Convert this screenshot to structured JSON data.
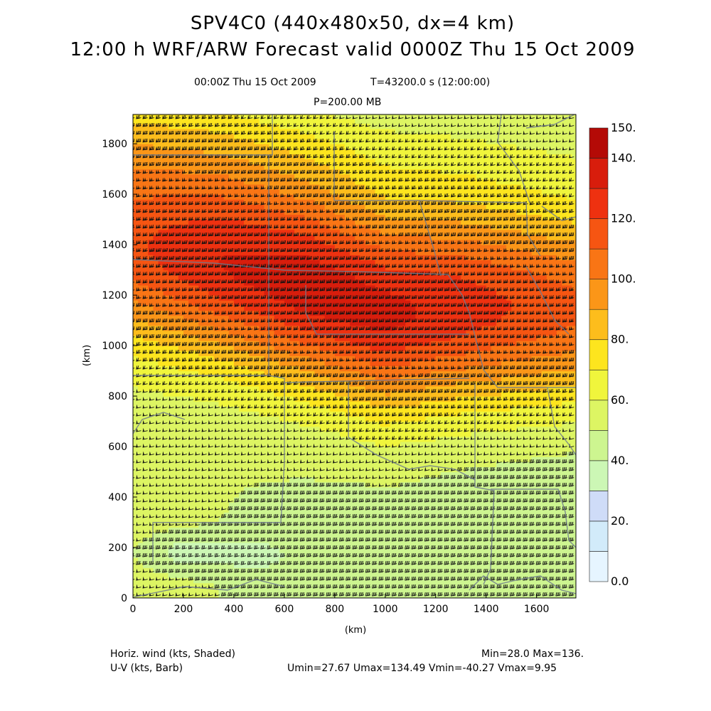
{
  "titles": {
    "line1": "SPV4C0 (440x480x50, dx=4 km)",
    "line2": "12:00 h WRF/ARW Forecast valid 0000Z Thu 15 Oct 2009",
    "time": "00:00Z Thu 15 Oct 2009",
    "elapsed": "T=43200.0 s (12:00:00)",
    "level": "P=200.00 MB"
  },
  "footer": {
    "field1": "Horiz. wind (kts, Shaded)",
    "field2": "U-V (kts, Barb)",
    "minmax": "Min=28.0 Max=136.",
    "uvstats": "Umin=27.67 Umax=134.49 Vmin=-40.27 Vmax=9.95"
  },
  "chart_data": {
    "type": "heatmap",
    "xlabel": "(km)",
    "ylabel": "(km)",
    "xlim": [
      0,
      1756
    ],
    "ylim": [
      0,
      1916
    ],
    "x_ticks": [
      0,
      200,
      400,
      600,
      800,
      1000,
      1200,
      1400,
      1600
    ],
    "y_ticks": [
      0,
      200,
      400,
      600,
      800,
      1000,
      1200,
      1400,
      1600,
      1800
    ],
    "colorbar": {
      "levels": [
        0,
        10,
        20,
        30,
        40,
        50,
        60,
        70,
        80,
        90,
        100,
        110,
        120,
        130,
        140,
        150
      ],
      "labels": [
        "0.0",
        "20.",
        "40.",
        "60.",
        "80.",
        "100.",
        "120.",
        "140.",
        "150."
      ],
      "colors": [
        "#e6f5ff",
        "#d2ebfa",
        "#cfdcf8",
        "#ccf7b5",
        "#cdf590",
        "#ddf563",
        "#f0f53c",
        "#fde51e",
        "#fdbd1c",
        "#fb9618",
        "#f97515",
        "#f65512",
        "#ee3110",
        "#d81d0c",
        "#b40a06"
      ]
    },
    "jet_core": [
      {
        "x": 0,
        "y": 1400,
        "speed": 118
      },
      {
        "x": 350,
        "y": 1330,
        "speed": 130
      },
      {
        "x": 700,
        "y": 1230,
        "speed": 136
      },
      {
        "x": 1000,
        "y": 1130,
        "speed": 133
      },
      {
        "x": 1300,
        "y": 1150,
        "speed": 126
      },
      {
        "x": 1756,
        "y": 1150,
        "speed": 112
      }
    ],
    "minimum_regions": [
      {
        "x": 220,
        "y": 180,
        "speed": 28
      },
      {
        "x": 480,
        "y": 170,
        "speed": 33
      }
    ],
    "barbs": "U-V wind barbs (kts) on a regular grid over the full domain"
  }
}
